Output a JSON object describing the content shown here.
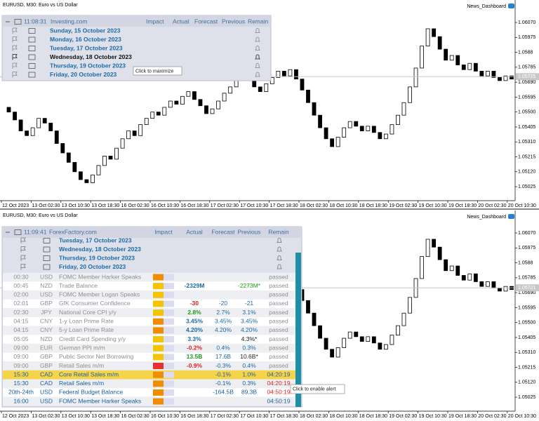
{
  "charts": [
    {
      "title": "EURUSD, M30:  Euro vs US Dollar",
      "indicator": "News_Dashboard",
      "ylim": [
        1.04936,
        1.06213
      ],
      "current_price": 1.05725,
      "price_ticks": [
        {
          "value": 1.0607,
          "label": "1.06070"
        },
        1.05975,
        1.0588,
        1.05785,
        {
          "value": 1.0569,
          "label": "1.05690"
        },
        1.05595,
        {
          "value": 1.055,
          "label": "1.05500"
        },
        1.05405,
        {
          "value": 1.0531,
          "label": "1.05310"
        },
        1.05215,
        {
          "value": 1.0512,
          "label": "1.05120"
        },
        1.05025
      ],
      "time_labels": [
        "12 Oct 2023",
        "13 Oct 02:30",
        "13 Oct 10:30",
        "13 Oct 18:30",
        "16 Oct 02:30",
        "16 Oct 10:30",
        "16 Oct 18:30",
        "17 Oct 02:30",
        "17 Oct 10:30",
        "17 Oct 18:30",
        "18 Oct 02:30",
        "18 Oct 10:30",
        "18 Oct 18:30",
        "19 Oct 02:30",
        "19 Oct 10:30",
        "19 Oct 18:30",
        "20 Oct 02:30",
        "20 Oct 10:30"
      ]
    },
    {
      "title": "EURUSD, M30:  Euro vs US Dollar",
      "indicator": "News_Dashboard",
      "ylim": [
        1.04936,
        1.06213
      ],
      "current_price": 1.05721,
      "price_ticks": [
        {
          "value": 1.0607,
          "label": "1.06070"
        },
        1.05975,
        1.0588,
        1.05785,
        {
          "value": 1.0569,
          "label": "1.05690"
        },
        1.05595,
        {
          "value": 1.055,
          "label": "1.05500"
        },
        1.05405,
        {
          "value": 1.0531,
          "label": "1.05310"
        },
        1.05215,
        {
          "value": 1.0512,
          "label": "1.05120"
        },
        1.05025
      ],
      "time_labels": [
        "12 Oct 2023",
        "13 Oct 02:30",
        "13 Oct 10:30",
        "13 Oct 18:30",
        "16 Oct 02:30",
        "16 Oct 10:30",
        "16 Oct 18:30",
        "17 Oct 02:30",
        "17 Oct 10:30",
        "17 Oct 18:30",
        "18 Oct 02:30",
        "18 Oct 10:30",
        "18 Oct 18:30",
        "19 Oct 02:30",
        "19 Oct 10:30",
        "19 Oct 18:30",
        "20 Oct 02:30",
        "20 Oct 10:30"
      ]
    }
  ],
  "prices": [
    1.0553,
    1.055,
    1.0545,
    1.0538,
    1.0535,
    1.054,
    1.0546,
    1.0543,
    1.0538,
    1.053,
    1.0524,
    1.0518,
    1.0512,
    1.0507,
    1.0505,
    1.051,
    1.0516,
    1.0522,
    1.052,
    1.0527,
    1.0533,
    1.0538,
    1.0535,
    1.0542,
    1.0546,
    1.055,
    1.0548,
    1.0553,
    1.0557,
    1.0555,
    1.056,
    1.0563,
    1.0558,
    1.0554,
    1.0549,
    1.0552,
    1.0557,
    1.0562,
    1.0566,
    1.0571,
    1.0575,
    1.057,
    1.0566,
    1.0563,
    1.0568,
    1.0572,
    1.0576,
    1.0573,
    1.0577,
    1.0571,
    1.0564,
    1.0556,
    1.0548,
    1.054,
    1.0533,
    1.0528,
    1.0534,
    1.054,
    1.0544,
    1.0541,
    1.0538,
    1.0541,
    1.0537,
    1.0533,
    1.0536,
    1.0542,
    1.0548,
    1.0556,
    1.0566,
    1.0578,
    1.0592,
    1.0603,
    1.0598,
    1.059,
    1.0583,
    1.0586,
    1.058,
    1.0577,
    1.0581,
    1.0576,
    1.0573,
    1.0576,
    1.0572,
    1.057,
    1.0573,
    1.0571
  ],
  "top_panel": {
    "clock": "11:08:31",
    "source": "Investing.com",
    "columns": [
      "Impact",
      "Actual",
      "Forecast",
      "Previous",
      "Remain"
    ],
    "days": [
      "Sunday, 15 October 2023",
      "Monday, 16 October 2023",
      "Tuesday, 17 October 2023",
      "Wednesday, 18 October 2023",
      "Thursday, 19 October 2023",
      "Friday, 20 October 2023"
    ],
    "active_day": 3,
    "tooltip": "Click to maximize"
  },
  "bottom_panel": {
    "clock": "11:09:41",
    "source": "ForexFactory.com",
    "columns": [
      "Impact",
      "Actual",
      "Forecast",
      "Previous",
      "Remain"
    ],
    "days": [
      "Tuesday, 17 October 2023",
      "Wednesday, 18 October 2023",
      "Thursday, 19 October 2023",
      "Friday, 20 October 2023"
    ],
    "highlight_row": 11,
    "tooltip": "Click to enable alert",
    "events": [
      {
        "time": "00:30",
        "currency": "USD",
        "event": "FOMC Member Harker Speaks",
        "remain": "passed",
        "text_color": "#8f8f8f",
        "impact_color": "#f08c00"
      },
      {
        "time": "00:45",
        "currency": "NZD",
        "event": "Trade Balance",
        "actual": "-2329M",
        "previous": "-2273M*",
        "remain": "passed",
        "text_color": "#8f8f8f",
        "actual_color": "#1b6aa5",
        "previous_color": "#1a9a1a",
        "impact_color": "#f5c400"
      },
      {
        "time": "02:00",
        "currency": "USD",
        "event": "FOMC Member Logan Speaks",
        "remain": "passed",
        "text_color": "#8f8f8f",
        "impact_color": "#f5c400"
      },
      {
        "time": "02:01",
        "currency": "GBP",
        "event": "GfK Consumer Confidence",
        "actual": "-30",
        "forecast": "-20",
        "previous": "-21",
        "remain": "passed",
        "text_color": "#8f8f8f",
        "actual_color": "#e02020",
        "forecast_color": "#1b6aa5",
        "previous_color": "#1b6aa5",
        "impact_color": "#f5c400"
      },
      {
        "time": "02:30",
        "currency": "JPY",
        "event": "National Core CPI y/y",
        "actual": "2.8%",
        "forecast": "2.7%",
        "previous": "3.1%",
        "remain": "passed",
        "text_color": "#8f8f8f",
        "actual_color": "#1a9a1a",
        "forecast_color": "#1b6aa5",
        "previous_color": "#1b6aa5",
        "impact_color": "#f5c400"
      },
      {
        "time": "04:15",
        "currency": "CNY",
        "event": "1-y Loan Prime Rate",
        "actual": "3.45%",
        "forecast": "3.45%",
        "previous": "3.45%",
        "remain": "passed",
        "text_color": "#8f8f8f",
        "actual_color": "#1b6aa5",
        "forecast_color": "#1b6aa5",
        "previous_color": "#1b6aa5",
        "impact_color": "#f08c00"
      },
      {
        "time": "04:15",
        "currency": "CNY",
        "event": "5-y Loan Prime Rate",
        "actual": "4.20%",
        "forecast": "4.20%",
        "previous": "4.20%",
        "remain": "passed",
        "text_color": "#8f8f8f",
        "actual_color": "#1b6aa5",
        "forecast_color": "#1b6aa5",
        "previous_color": "#1b6aa5",
        "impact_color": "#f08c00"
      },
      {
        "time": "05:05",
        "currency": "NZD",
        "event": "Credit Card Spending y/y",
        "actual": "3.3%",
        "previous": "4.3%*",
        "remain": "passed",
        "text_color": "#8f8f8f",
        "actual_color": "#1b6aa5",
        "previous_color": "#222222",
        "impact_color": "#f5c400"
      },
      {
        "time": "09:00",
        "currency": "EUR",
        "event": "German PPI m/m",
        "actual": "-0.2%",
        "forecast": "0.4%",
        "previous": "0.3%",
        "remain": "passed",
        "text_color": "#8f8f8f",
        "actual_color": "#e02020",
        "forecast_color": "#1b6aa5",
        "previous_color": "#1b6aa5",
        "impact_color": "#f5c400"
      },
      {
        "time": "09:00",
        "currency": "GBP",
        "event": "Public Sector Net Borrowing",
        "actual": "13.5B",
        "forecast": "17.6B",
        "previous": "10.6B*",
        "remain": "passed",
        "text_color": "#8f8f8f",
        "actual_color": "#1a9a1a",
        "forecast_color": "#1b6aa5",
        "previous_color": "#222222",
        "impact_color": "#f5c400"
      },
      {
        "time": "09:00",
        "currency": "GBP",
        "event": "Retail Sales m/m",
        "actual": "-0.9%",
        "forecast": "-0.3%",
        "previous": "0.4%",
        "remain": "passed",
        "text_color": "#8f8f8f",
        "actual_color": "#e02020",
        "forecast_color": "#1b6aa5",
        "previous_color": "#1b6aa5",
        "impact_color": "#e83030"
      },
      {
        "time": "15:30",
        "currency": "CAD",
        "event": "Core Retail Sales m/m",
        "forecast": "-0.1%",
        "previous": "1.0%",
        "remain": "04:20:19",
        "text_color": "#1b5fa0",
        "impact_color": "#f08c00"
      },
      {
        "time": "15:30",
        "currency": "CAD",
        "event": "Retail Sales m/m",
        "forecast": "-0.1%",
        "previous": "0.3%",
        "remain": "04:20:19",
        "text_color": "#1b5fa0",
        "remain_color": "#e02020",
        "impact_color": "#f08c00"
      },
      {
        "time": "20th-24th",
        "currency": "USD",
        "event": "Federal Budget Balance",
        "forecast": "-164.5B",
        "previous": "89.3B",
        "remain": "04:50:19",
        "text_color": "#1b5fa0",
        "remain_color": "#e02020",
        "impact_color": "#f08c00"
      },
      {
        "time": "16:00",
        "currency": "USD",
        "event": "FOMC Member Harker Speaks",
        "remain": "04:50:19",
        "text_color": "#1b5fa0",
        "impact_color": "#f08c00"
      }
    ]
  }
}
